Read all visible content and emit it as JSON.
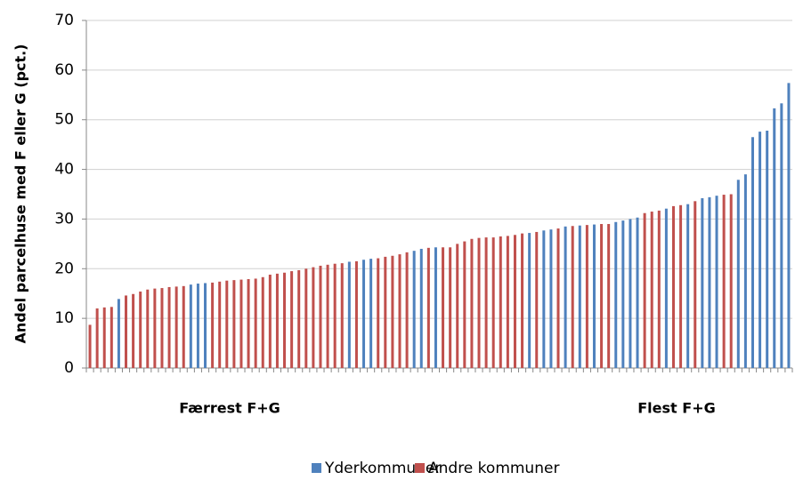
{
  "chart_data": {
    "type": "bar",
    "y_label": "Andel parcelhuse med F eller G (pct.)",
    "annotations": [
      "Færrest F+G",
      "Flest F+G"
    ],
    "ylim": [
      0,
      70
    ],
    "yticks": [
      0,
      10,
      20,
      30,
      40,
      50,
      60,
      70
    ],
    "grid": true,
    "legend": "bottom",
    "series": [
      {
        "name": "Yderkommuner",
        "color": "#4f81bd",
        "values": [
          null,
          null,
          null,
          null,
          13.9,
          null,
          null,
          null,
          null,
          null,
          null,
          null,
          null,
          null,
          16.8,
          17.0,
          17.1,
          null,
          null,
          null,
          null,
          null,
          null,
          null,
          null,
          null,
          null,
          null,
          null,
          null,
          null,
          null,
          null,
          null,
          null,
          null,
          21.4,
          null,
          21.8,
          22.0,
          null,
          null,
          null,
          null,
          null,
          23.6,
          24.0,
          null,
          24.3,
          null,
          null,
          null,
          null,
          null,
          null,
          null,
          null,
          null,
          null,
          null,
          null,
          27.2,
          null,
          27.7,
          27.9,
          null,
          28.5,
          null,
          28.7,
          null,
          28.9,
          null,
          null,
          29.4,
          29.7,
          30.0,
          30.3,
          null,
          null,
          null,
          32.1,
          null,
          null,
          33.0,
          null,
          34.2,
          34.4,
          34.7,
          null,
          null,
          37.9,
          39.0,
          46.5,
          47.6,
          47.8,
          52.3,
          53.3,
          57.4
        ]
      },
      {
        "name": "Andre kommuner",
        "color": "#c0504d",
        "values": [
          8.7,
          12.0,
          12.2,
          12.3,
          null,
          14.6,
          14.9,
          15.4,
          15.8,
          16.0,
          16.1,
          16.3,
          16.4,
          16.5,
          null,
          null,
          null,
          17.2,
          17.4,
          17.6,
          17.7,
          17.8,
          17.9,
          18.0,
          18.3,
          18.8,
          19.0,
          19.2,
          19.5,
          19.7,
          20.0,
          20.3,
          20.6,
          20.8,
          21.0,
          21.1,
          null,
          21.5,
          null,
          null,
          22.1,
          22.4,
          22.6,
          22.9,
          23.3,
          null,
          null,
          24.2,
          null,
          24.3,
          24.3,
          25.0,
          25.5,
          26.0,
          26.2,
          26.3,
          26.3,
          26.5,
          26.6,
          26.8,
          27.1,
          null,
          27.4,
          null,
          null,
          28.1,
          null,
          28.6,
          null,
          28.8,
          null,
          29.0,
          29.0,
          null,
          null,
          null,
          null,
          31.2,
          31.5,
          31.7,
          null,
          32.6,
          32.8,
          null,
          33.6,
          null,
          null,
          null,
          34.9,
          35.0,
          null,
          null,
          null,
          null,
          null,
          null,
          null,
          null
        ]
      }
    ]
  }
}
